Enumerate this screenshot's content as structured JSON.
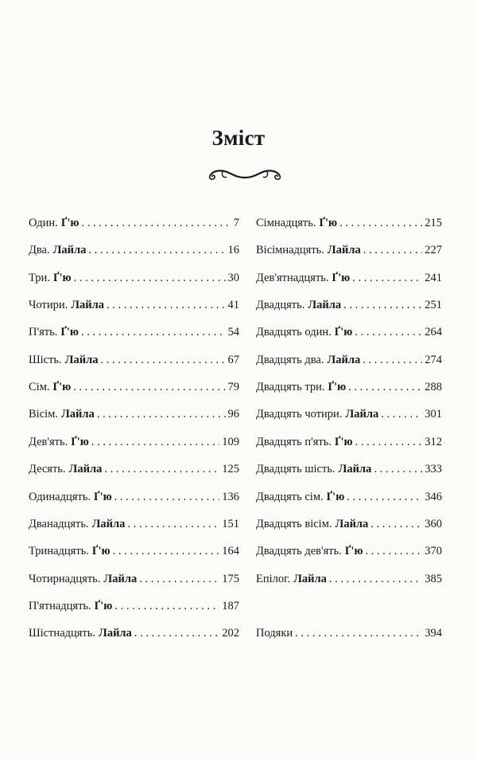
{
  "title": "Зміст",
  "ornament_icon": "scroll-flourish-icon",
  "left_column": [
    {
      "chapter": "Один.",
      "narrator": "Ґ'ю",
      "page": "7"
    },
    {
      "chapter": "Два.",
      "narrator": "Лайла",
      "page": "16"
    },
    {
      "chapter": "Три.",
      "narrator": "Ґ'ю",
      "page": "30"
    },
    {
      "chapter": "Чотири.",
      "narrator": "Лайла",
      "page": "41"
    },
    {
      "chapter": "П'ять.",
      "narrator": "Ґ'ю",
      "page": "54"
    },
    {
      "chapter": "Шість.",
      "narrator": "Лайла",
      "page": "67"
    },
    {
      "chapter": "Сім.",
      "narrator": "Ґ'ю",
      "page": "79"
    },
    {
      "chapter": "Вісім.",
      "narrator": "Лайла",
      "page": "96"
    },
    {
      "chapter": "Дев'ять.",
      "narrator": "Ґ'ю",
      "page": "109"
    },
    {
      "chapter": "Десять.",
      "narrator": "Лайла",
      "page": "125"
    },
    {
      "chapter": "Одинадцять.",
      "narrator": "Ґ'ю",
      "page": "136"
    },
    {
      "chapter": "Дванадцять.",
      "narrator": "Лайла",
      "page": "151"
    },
    {
      "chapter": "Тринадцять.",
      "narrator": "Ґ'ю",
      "page": "164"
    },
    {
      "chapter": "Чотирнадцять.",
      "narrator": "Лайла",
      "page": "175"
    },
    {
      "chapter": "П'ятнадцять.",
      "narrator": "Ґ'ю",
      "page": "187"
    },
    {
      "chapter": "Шістнадцять.",
      "narrator": "Лайла",
      "page": "202"
    }
  ],
  "right_column": [
    {
      "chapter": "Сімнадцять.",
      "narrator": "Ґ'ю",
      "page": "215"
    },
    {
      "chapter": "Вісімнадцять.",
      "narrator": "Лайла",
      "page": "227"
    },
    {
      "chapter": "Дев'ятнадцять.",
      "narrator": "Ґ'ю",
      "page": "241"
    },
    {
      "chapter": "Двадцять.",
      "narrator": "Лайла",
      "page": "251"
    },
    {
      "chapter": "Двадцять один.",
      "narrator": "Ґ'ю",
      "page": "264"
    },
    {
      "chapter": "Двадцять два.",
      "narrator": "Лайла",
      "page": "274"
    },
    {
      "chapter": "Двадцять три.",
      "narrator": "Ґ'ю",
      "page": "288"
    },
    {
      "chapter": "Двадцять чотири.",
      "narrator": "Лайла",
      "page": "301"
    },
    {
      "chapter": "Двадцять п'ять.",
      "narrator": "Ґ'ю",
      "page": "312"
    },
    {
      "chapter": "Двадцять шість.",
      "narrator": "Лайла",
      "page": "333"
    },
    {
      "chapter": "Двадцять сім.",
      "narrator": "Ґ'ю",
      "page": "346"
    },
    {
      "chapter": "Двадцять вісім.",
      "narrator": "Лайла",
      "page": "360"
    },
    {
      "chapter": "Двадцять дев'ять.",
      "narrator": "Ґ'ю",
      "page": "370"
    },
    {
      "chapter": "Епілог.",
      "narrator": "Лайла",
      "page": "385"
    }
  ],
  "acknowledgements": {
    "chapter": "Подяки",
    "page": "394"
  }
}
